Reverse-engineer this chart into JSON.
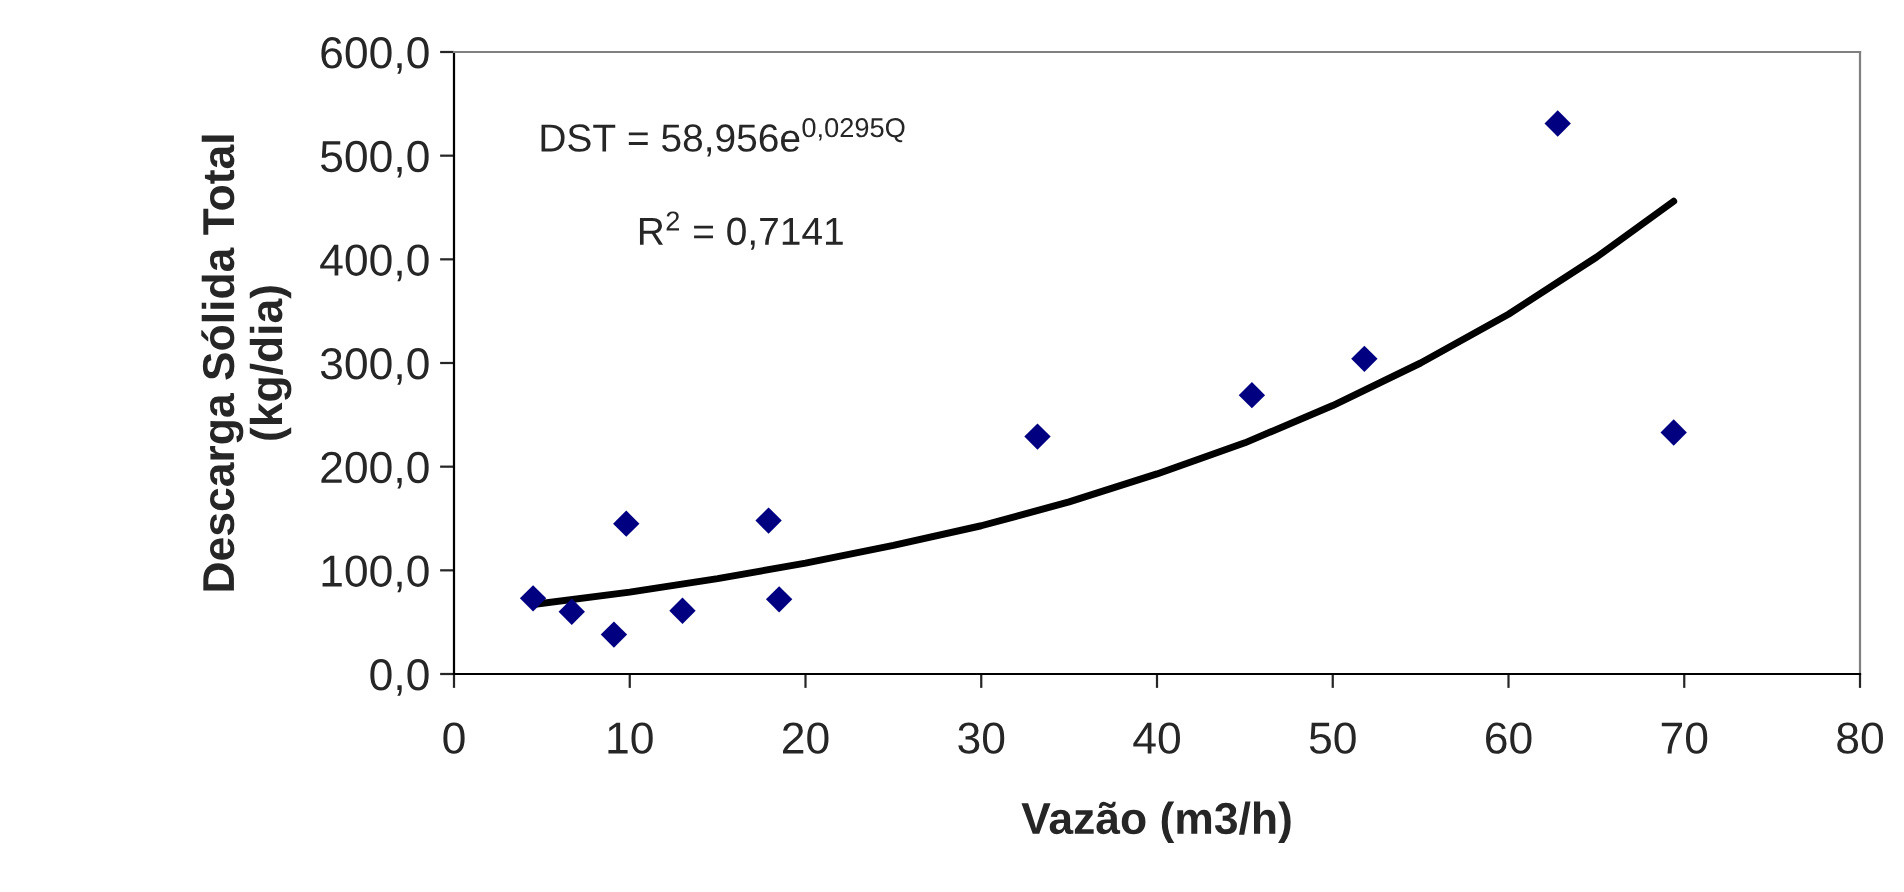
{
  "chart_data": {
    "type": "scatter",
    "xlabel": "Vazão (m3/h)",
    "ylabel": "Descarga Sólida Total\n(kg/dia)",
    "xlim": [
      0,
      80
    ],
    "xticks": [
      0,
      10,
      20,
      30,
      40,
      50,
      60,
      70,
      80
    ],
    "ylim": [
      0,
      600
    ],
    "yticks": [
      {
        "value": 0,
        "label": "0,0"
      },
      {
        "value": 100,
        "label": "100,0"
      },
      {
        "value": 200,
        "label": "200,0"
      },
      {
        "value": 300,
        "label": "300,0"
      },
      {
        "value": 400,
        "label": "400,0"
      },
      {
        "value": 500,
        "label": "500,0"
      },
      {
        "value": 600,
        "label": "600,0"
      }
    ],
    "grid": false,
    "legend": false,
    "marker": "diamond",
    "series": [
      {
        "color": "#000080",
        "x": [
          4.5,
          6.7,
          9.1,
          9.8,
          13.0,
          17.9,
          18.5,
          33.2,
          45.4,
          51.8,
          62.8,
          69.4
        ],
        "values": [
          73,
          60,
          38,
          145,
          61,
          148,
          72,
          229,
          269,
          304,
          531,
          233
        ]
      },
      {
        "type": "line",
        "color": "#000000",
        "marker": "none",
        "line_style": "solid",
        "x": [
          4.5,
          10,
          15,
          20,
          25,
          30,
          35,
          40,
          45,
          50,
          55,
          60,
          65,
          69.4
        ],
        "values": [
          67,
          79,
          92,
          107,
          124,
          143,
          166,
          193,
          223,
          259,
          300,
          347,
          402,
          456
        ]
      }
    ],
    "annotations": [
      "DST = 58,956e$^{0,0295Q}$",
      "R$^{2}$ = 0,7141"
    ]
  }
}
